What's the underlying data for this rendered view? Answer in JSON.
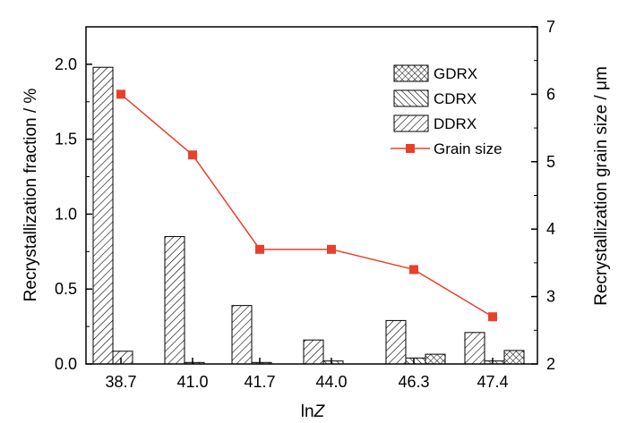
{
  "chart_data": {
    "type": "bar",
    "categories": [
      "38.7",
      "41.0",
      "41.7",
      "44.0",
      "46.3",
      "47.4"
    ],
    "xlabel": "lnZ",
    "xlabel_parts": {
      "main": "ln",
      "italic": "Z"
    },
    "ylabel": "Recrystallization fraction / %",
    "ylim": [
      0,
      2.25
    ],
    "yticks": [
      "0.0",
      "0.5",
      "1.0",
      "1.5",
      "2.0"
    ],
    "y2label": "Recrystallization grain size / μm",
    "y2lim": [
      2,
      7
    ],
    "y2ticks": [
      "2",
      "3",
      "4",
      "5",
      "6",
      "7"
    ],
    "legend_position": "top-right",
    "series": [
      {
        "name": "GDRX",
        "kind": "bar",
        "pattern": "crosshatch",
        "values": [
          0,
          0,
          0,
          0,
          0.065,
          0.09
        ]
      },
      {
        "name": "CDRX",
        "kind": "bar",
        "pattern": "backslash",
        "values": [
          0,
          0.01,
          0.01,
          0.02,
          0.04,
          0.02
        ]
      },
      {
        "name": "DDRX",
        "kind": "bar",
        "pattern": "slash",
        "values": [
          1.98,
          0.85,
          0.39,
          0.16,
          0.29,
          0.21
        ]
      },
      {
        "name": "Grain size",
        "kind": "line",
        "axis": "right",
        "color": "#e8412b",
        "values": [
          6.0,
          5.1,
          3.7,
          3.7,
          3.4,
          2.7
        ]
      }
    ],
    "ddrx_standalone_second_bar": [
      0.085,
      0,
      0,
      0,
      0,
      0
    ]
  }
}
